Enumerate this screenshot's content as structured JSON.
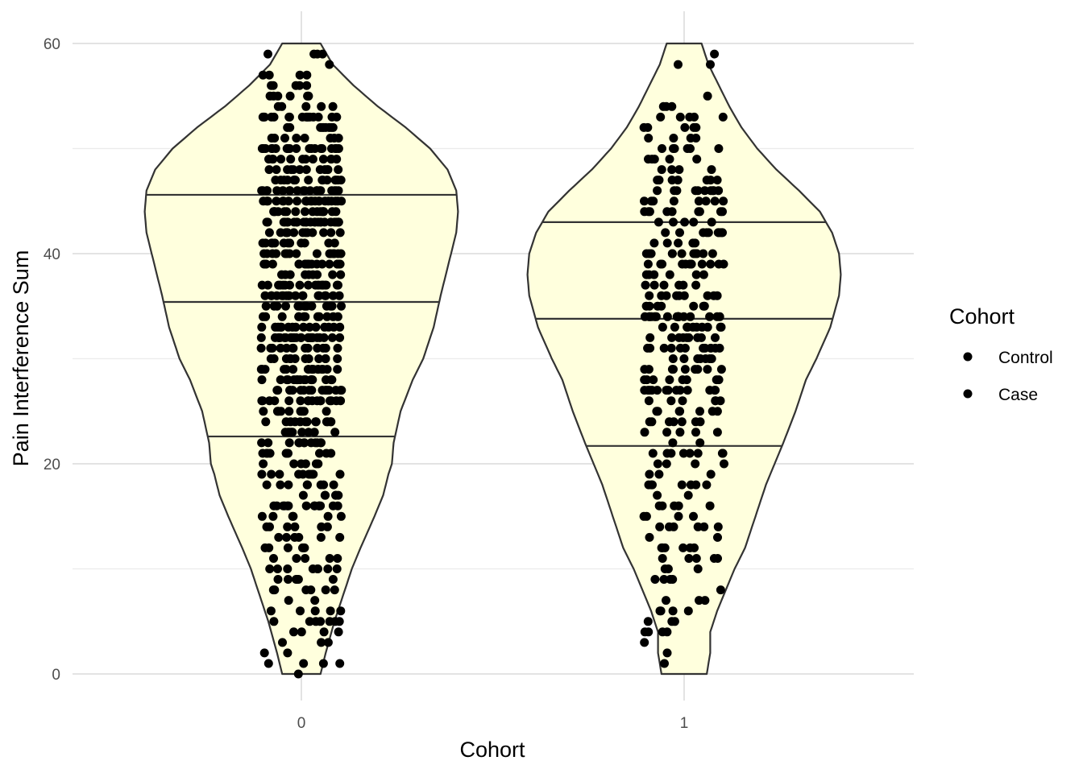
{
  "chart_data": {
    "type": "violin",
    "xlabel": "Cohort",
    "ylabel": "Pain Interference Sum",
    "categories": [
      "0",
      "1"
    ],
    "ylim": [
      -4.5,
      64
    ],
    "yticks": [
      0,
      20,
      40,
      60
    ],
    "grid": true,
    "fill_color": "#FFFFDD",
    "outline_color": "#333333",
    "point_color": "#000000",
    "quantile_lines": [
      {
        "category": "0",
        "q25": 22.6,
        "q50": 35.4,
        "q75": 45.6
      },
      {
        "category": "1",
        "q25": 21.7,
        "q50": 33.8,
        "q75": 43.0
      }
    ],
    "density_profile": [
      {
        "category": "0",
        "y": [
          0,
          2,
          5,
          8,
          10,
          12,
          15,
          17,
          19,
          20,
          22,
          25,
          28,
          30,
          33,
          36,
          38,
          40,
          42,
          44,
          46,
          48,
          50,
          52,
          54,
          56,
          58,
          60
        ],
        "half_width": [
          0.11,
          0.14,
          0.19,
          0.25,
          0.29,
          0.34,
          0.42,
          0.47,
          0.5,
          0.52,
          0.53,
          0.57,
          0.64,
          0.7,
          0.76,
          0.8,
          0.83,
          0.86,
          0.89,
          0.9,
          0.89,
          0.84,
          0.74,
          0.6,
          0.44,
          0.3,
          0.18,
          0.11
        ]
      },
      {
        "category": "1",
        "y": [
          0,
          2,
          4,
          6,
          8,
          10,
          12,
          15,
          18,
          20,
          22,
          25,
          28,
          30,
          33,
          36,
          38,
          40,
          42,
          44,
          46,
          48,
          50,
          52,
          54,
          56,
          58,
          60
        ],
        "half_width": [
          0.13,
          0.15,
          0.15,
          0.19,
          0.24,
          0.29,
          0.35,
          0.41,
          0.47,
          0.52,
          0.57,
          0.64,
          0.7,
          0.76,
          0.84,
          0.89,
          0.9,
          0.89,
          0.85,
          0.78,
          0.66,
          0.53,
          0.42,
          0.33,
          0.26,
          0.2,
          0.14,
          0.1
        ]
      }
    ],
    "series": [
      {
        "name": "Control",
        "category": "0",
        "n": 640,
        "seed": 7
      },
      {
        "name": "Case",
        "category": "1",
        "n": 330,
        "seed": 13
      }
    ],
    "legend": {
      "title": "Cohort",
      "entries": [
        "Control",
        "Case"
      ],
      "position": "right"
    }
  }
}
